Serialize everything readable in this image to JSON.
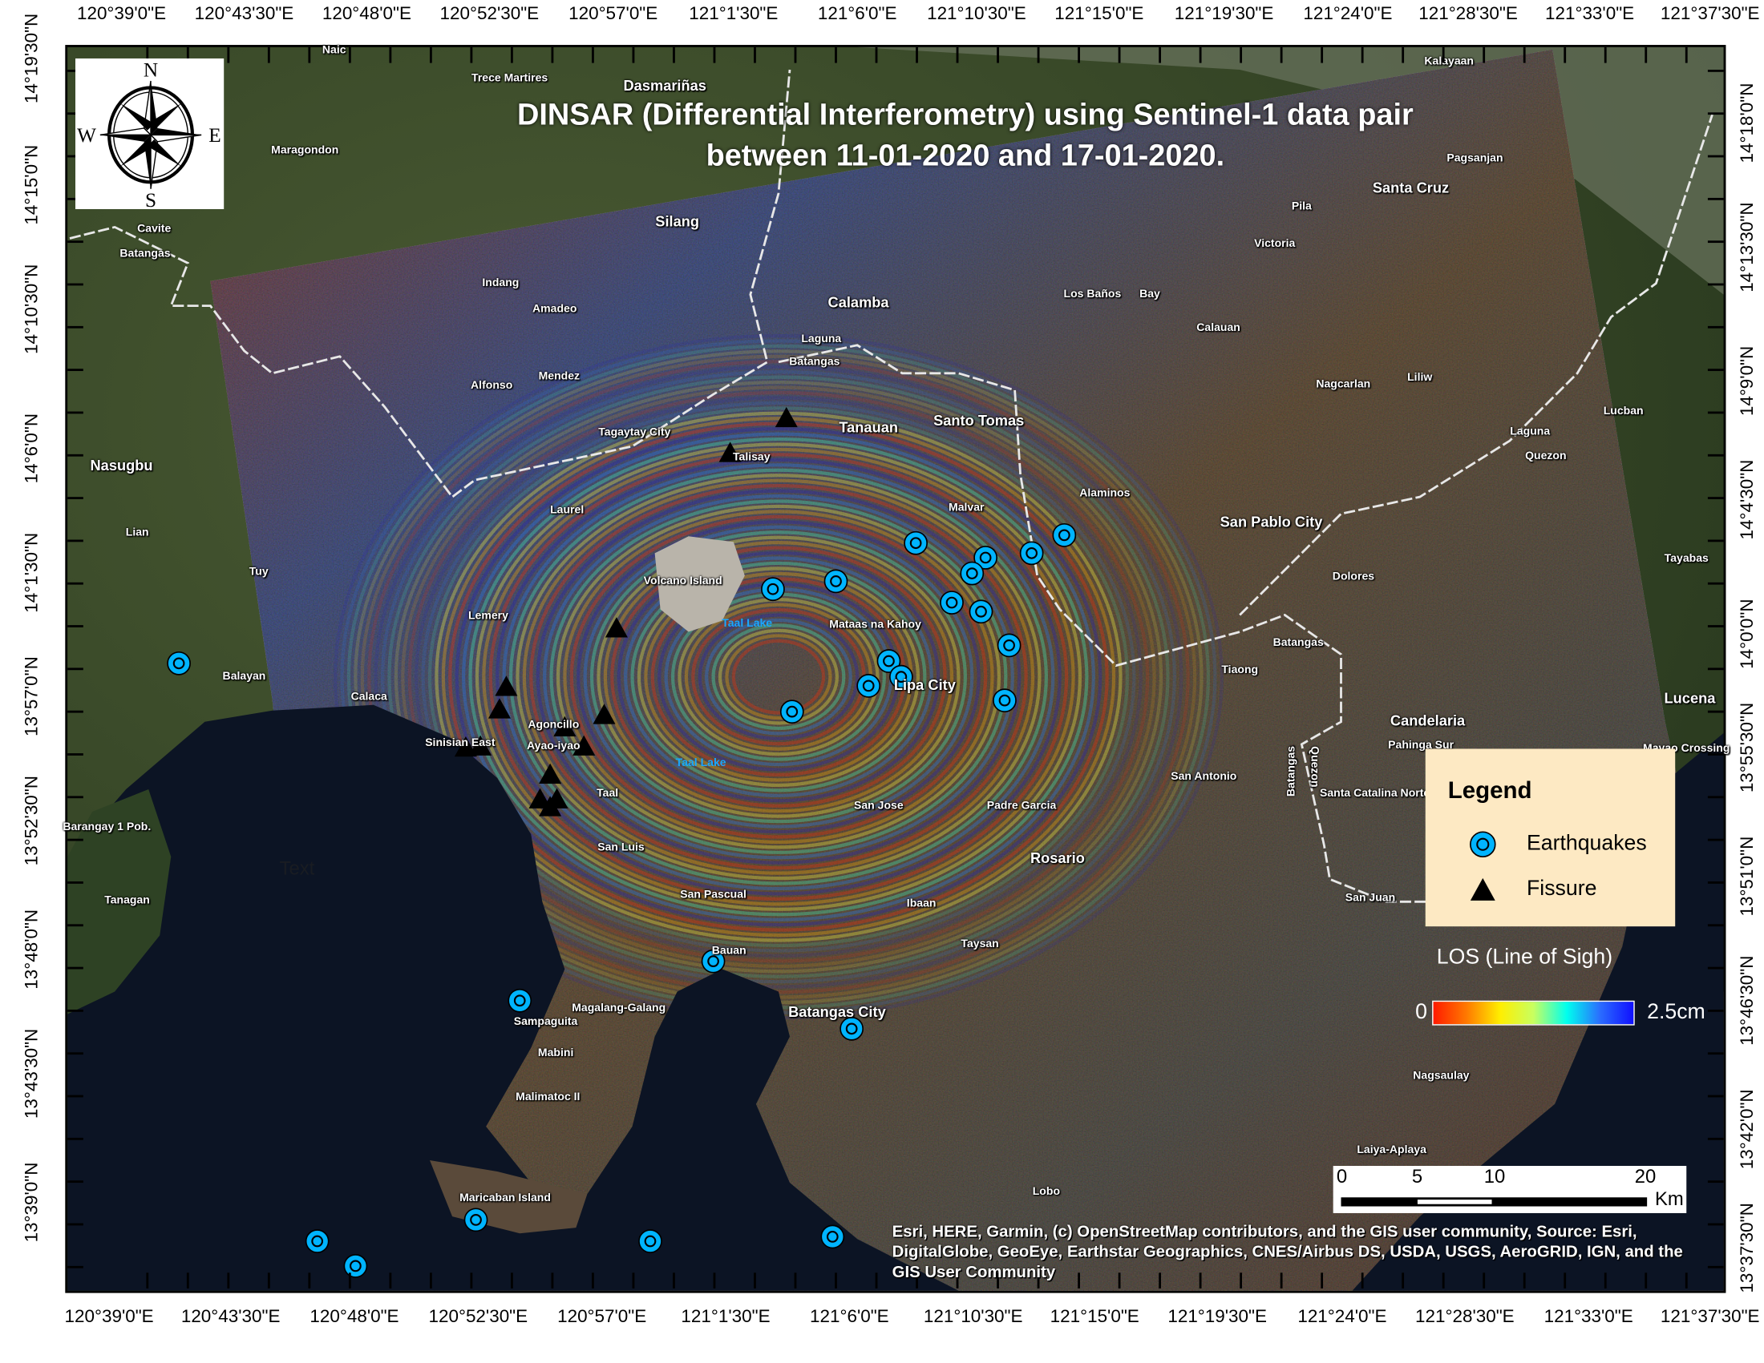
{
  "title": {
    "line1": "DINSAR (Differential Interferometry) using Sentinel-1 data pair",
    "line2": "between 11-01-2020 and 17-01-2020."
  },
  "longitude_labels_top": [
    "120°39'0\"E",
    "120°43'30\"E",
    "120°48'0\"E",
    "120°52'30\"E",
    "120°57'0\"E",
    "121°1'30\"E",
    "121°6'0\"E",
    "121°10'30\"E",
    "121°15'0\"E",
    "121°19'30\"E",
    "121°24'0\"E",
    "121°28'30\"E",
    "121°33'0\"E",
    "121°37'30\"E"
  ],
  "longitude_labels_bottom": [
    "120°39'0\"E",
    "120°43'30\"E",
    "120°48'0\"E",
    "120°52'30\"E",
    "120°57'0\"E",
    "121°1'30\"E",
    "121°6'0\"E",
    "121°10'30\"E",
    "121°15'0\"E",
    "121°19'30\"E",
    "121°24'0\"E",
    "121°28'30\"E",
    "121°33'0\"E",
    "121°37'30\"E"
  ],
  "latitude_labels_left": [
    "14°19'30\"N",
    "14°15'0\"N",
    "14°10'30\"N",
    "14°6'0\"N",
    "14°1'30\"N",
    "13°57'0\"N",
    "13°52'30\"N",
    "13°48'0\"N",
    "13°43'30\"N",
    "13°39'0\"N"
  ],
  "latitude_labels_right": [
    "14°18'0\"N",
    "14°13'30\"N",
    "14°9'0\"N",
    "14°4'30\"N",
    "14°0'0\"N",
    "13°55'30\"N",
    "13°51'0\"N",
    "13°46'30\"N",
    "13°42'0\"N",
    "13°37'30\"N"
  ],
  "compass": {
    "n": "N",
    "s": "S",
    "e": "E",
    "w": "W"
  },
  "places": [
    "Naic",
    "Trece Martires",
    "Dasmariñas",
    "Maragondon",
    "Silang",
    "Cavite",
    "Batangas",
    "Indang",
    "Amadeo",
    "Calamba",
    "Laguna",
    "Batangas",
    "Mendez",
    "Alfonso",
    "Tagaytay City",
    "Talisay",
    "Tanauan",
    "Santo Tomas",
    "Los Baños",
    "Bay",
    "Calauan",
    "Santa Cruz",
    "Pila",
    "Victoria",
    "Pagsanjan",
    "Kalayaan",
    "Nagcarlan",
    "Liliw",
    "Lucban",
    "Laguna",
    "Quezon",
    "Nasugbu",
    "Lian",
    "Tuy",
    "Laurel",
    "Volcano Island",
    "Taal Lake",
    "Malvar",
    "Alaminos",
    "San Pablo City",
    "Tayabas",
    "Dolores",
    "Lemery",
    "Mataas na Kahoy",
    "Lipa City",
    "Balayan",
    "Calaca",
    "Agoncillo",
    "Sinisian East",
    "Ayao-iyao",
    "Taal Lake",
    "Taal",
    "Batangas",
    "Tiaong",
    "Candelaria",
    "Lucena",
    "Pahinga Sur",
    "Mayao Crossing",
    "San Antonio",
    "Batangas",
    "Quezon",
    "Santa Catalina Norte",
    "San Jose",
    "Padre Garcia",
    "Rosario",
    "San Luis",
    "Barangay 1 Pob.",
    "Tanagan",
    "San Pascual",
    "Ibaan",
    "Taysan",
    "San Juan",
    "Bauan",
    "Sampaguita",
    "Magalang-Galang",
    "Batangas City",
    "Mabini",
    "Malimatoc II",
    "Nagsaulay",
    "Laiya-Aplaya",
    "Maricaban Island",
    "Lobo",
    "Text"
  ],
  "legend": {
    "title": "Legend",
    "items": [
      {
        "label": "Earthquakes",
        "symbol": "earthquake-circle-icon",
        "color": "#00b4ff"
      },
      {
        "label": "Fissure",
        "symbol": "triangle-icon",
        "color": "#000000"
      }
    ]
  },
  "colorbar": {
    "title": "LOS (Line of Sigh)",
    "min_label": "0",
    "max_label": "2.5cm",
    "min": 0,
    "max": 2.5,
    "unit": "cm",
    "colors": [
      "#ff1a00",
      "#ff7a00",
      "#ffee00",
      "#c8ff60",
      "#00ffee",
      "#2a6cff",
      "#1010ff"
    ]
  },
  "scalebar": {
    "ticks": [
      "0",
      "5",
      "10",
      "20"
    ],
    "unit": "Km"
  },
  "attribution": "Esri, HERE, Garmin, (c) OpenStreetMap contributors, and the GIS user community, Source: Esri, DigitalGlobe, GeoEye, Earthstar Geographics, CNES/Airbus DS, USDA, USGS, AeroGRID, IGN, and the GIS User Community"
}
